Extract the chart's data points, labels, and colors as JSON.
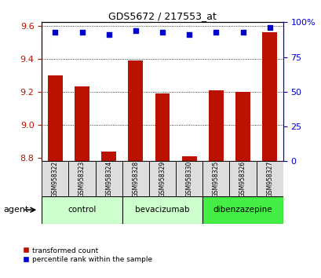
{
  "title": "GDS5672 / 217553_at",
  "samples": [
    "GSM958322",
    "GSM958323",
    "GSM958324",
    "GSM958328",
    "GSM958329",
    "GSM958330",
    "GSM958325",
    "GSM958326",
    "GSM958327"
  ],
  "bar_values": [
    9.3,
    9.23,
    8.84,
    9.39,
    9.19,
    8.81,
    9.21,
    9.2,
    9.56
  ],
  "percentile_values": [
    93,
    93,
    91,
    94,
    93,
    91,
    93,
    93,
    96
  ],
  "groups_info": [
    {
      "label": "control",
      "start": 0,
      "end": 2,
      "color": "#ccffcc"
    },
    {
      "label": "bevacizumab",
      "start": 3,
      "end": 5,
      "color": "#ccffcc"
    },
    {
      "label": "dibenzazepine",
      "start": 6,
      "end": 8,
      "color": "#44ee44"
    }
  ],
  "bar_color": "#bb1100",
  "dot_color": "#0000cc",
  "ylim_left": [
    8.78,
    9.62
  ],
  "ylim_right": [
    0,
    100
  ],
  "yticks_left": [
    8.8,
    9.0,
    9.2,
    9.4,
    9.6
  ],
  "yticks_right": [
    0,
    25,
    50,
    75,
    100
  ],
  "bar_width": 0.55,
  "background_color": "#ffffff"
}
